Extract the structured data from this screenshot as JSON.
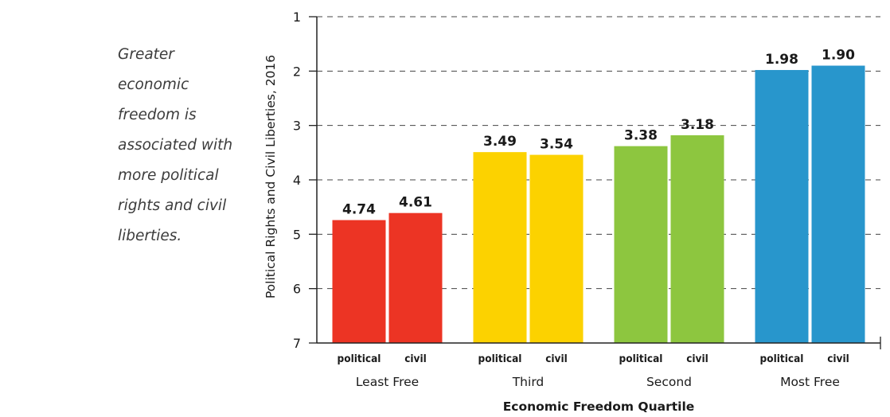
{
  "caption": "Greater economic freedom is associated with more political rights and civil liberties.",
  "chart_data": {
    "type": "bar",
    "title": "",
    "ylabel": "Political Rights and Civil Liberties, 2016",
    "xlabel": "Economic Freedom Quartile",
    "ylim": [
      1,
      7
    ],
    "y_inverted": true,
    "baseline": 7,
    "yticks": [
      1,
      2,
      3,
      4,
      5,
      6,
      7
    ],
    "grid": "dashed horizontal",
    "legend": "none",
    "bar_labels": [
      "political",
      "civil"
    ],
    "categories": [
      "Least Free",
      "Third",
      "Second",
      "Most Free"
    ],
    "colors": [
      "#ec3424",
      "#fcd200",
      "#8dc63f",
      "#2896cc"
    ],
    "series": [
      {
        "name": "political",
        "values": [
          4.74,
          3.49,
          3.38,
          1.98
        ]
      },
      {
        "name": "civil",
        "values": [
          4.61,
          3.54,
          3.18,
          1.9
        ]
      }
    ],
    "value_labels": [
      [
        "4.74",
        "4.61"
      ],
      [
        "3.49",
        "3.54"
      ],
      [
        "3.38",
        "3.18"
      ],
      [
        "1.98",
        "1.90"
      ]
    ]
  }
}
